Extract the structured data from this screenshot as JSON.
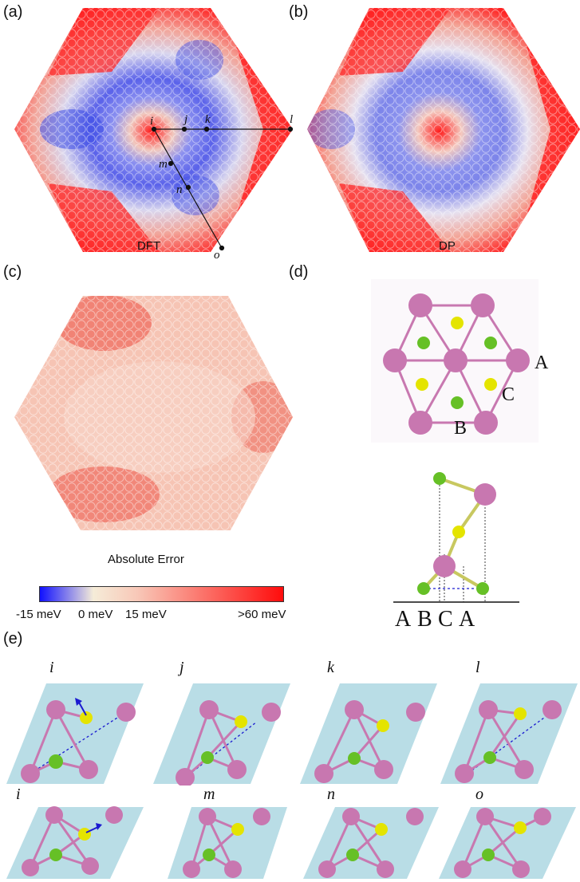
{
  "figure": {
    "panels": {
      "a": {
        "label": "(a)",
        "caption": "DFT",
        "points": [
          "i",
          "j",
          "k",
          "l",
          "m",
          "n",
          "o"
        ]
      },
      "b": {
        "label": "(b)",
        "caption": "DP"
      },
      "c": {
        "label": "(c)",
        "caption": "Absolute Error"
      },
      "d": {
        "label": "(d)",
        "site_labels": [
          "A",
          "B",
          "C"
        ],
        "axis_labels": [
          "A",
          "B",
          "C",
          "A"
        ]
      },
      "e": {
        "label": "(e)",
        "row1": [
          "i",
          "j",
          "k",
          "l"
        ],
        "row2": [
          "i",
          "m",
          "n",
          "o"
        ]
      }
    },
    "colorbar": {
      "ticks": [
        "-15 meV",
        "0 meV",
        "15 meV",
        ">60 meV"
      ],
      "colors": {
        "low": "#1010ff",
        "mid": "#f5ecd8",
        "high": "#ff0c0c"
      }
    },
    "colors": {
      "atom_pink": "#c877b0",
      "atom_yellow": "#e4e400",
      "atom_green": "#66c026",
      "plane": "#b9dde6"
    }
  }
}
